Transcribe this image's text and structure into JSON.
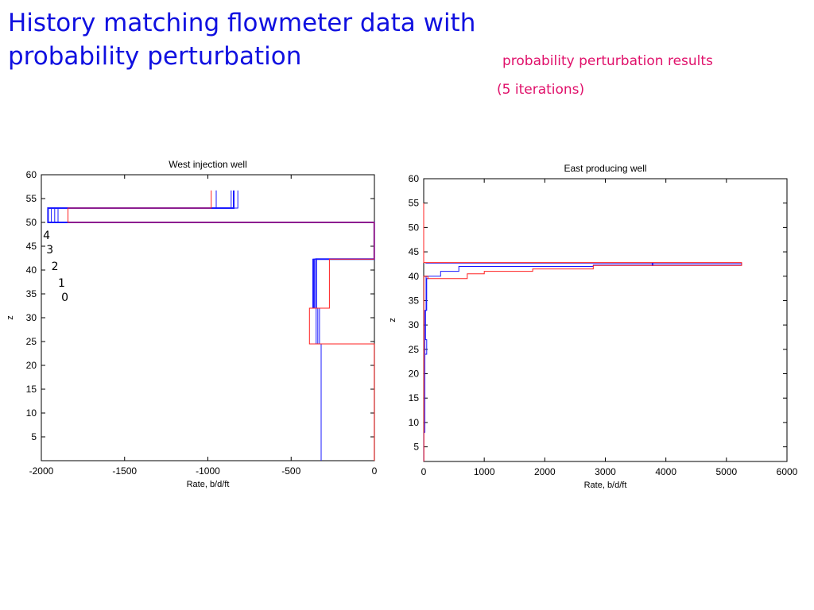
{
  "slide": {
    "title_line1": "History matching flowmeter data with",
    "title_line2": "probability perturbation",
    "subtitle_line1": "probability perturbation results",
    "subtitle_line2": "(5 iterations)"
  },
  "colors": {
    "blue": "#1a1aff",
    "red": "#ff2020",
    "title": "#1010e0",
    "subtitle": "#e0106a"
  },
  "chart_data": [
    {
      "type": "line",
      "title": "West injection well",
      "xlabel": "Rate, b/d/ft",
      "ylabel": "z",
      "xlim": [
        -2000,
        0
      ],
      "ylim": [
        0,
        60
      ],
      "xticks": [
        -2000,
        -1500,
        -1000,
        -500,
        0
      ],
      "yticks": [
        5,
        10,
        15,
        20,
        25,
        30,
        35,
        40,
        45,
        50,
        55,
        60
      ],
      "grid": false,
      "annotations": [
        {
          "text": "4",
          "x": -1990,
          "y": 46.5
        },
        {
          "text": "3",
          "x": -1970,
          "y": 43.5
        },
        {
          "text": "2",
          "x": -1940,
          "y": 40
        },
        {
          "text": "1",
          "x": -1900,
          "y": 36.5
        },
        {
          "text": "0",
          "x": -1880,
          "y": 33.5
        }
      ],
      "series": [
        {
          "color": "blue",
          "width": 1,
          "points": [
            [
              -320,
              0
            ],
            [
              -320,
              24.5
            ],
            [
              -330,
              24.5
            ],
            [
              -330,
              32
            ],
            [
              -360,
              32
            ],
            [
              -360,
              42.3
            ],
            [
              -1,
              42.3
            ],
            [
              -1,
              50
            ],
            [
              -1940,
              50
            ],
            [
              -1940,
              53
            ],
            [
              -820,
              53
            ],
            [
              -820,
              56.7
            ]
          ]
        },
        {
          "color": "blue",
          "width": 1,
          "points": [
            [
              -350,
              24.5
            ],
            [
              -350,
              32
            ],
            [
              -370,
              32
            ],
            [
              -370,
              42.3
            ],
            [
              -1,
              42.3
            ],
            [
              -1,
              50
            ],
            [
              -1900,
              50
            ],
            [
              -1900,
              53
            ],
            [
              -950,
              53
            ],
            [
              -950,
              56.7
            ]
          ]
        },
        {
          "color": "blue",
          "width": 1,
          "points": [
            [
              -340,
              24.5
            ],
            [
              -340,
              32
            ],
            [
              -365,
              32
            ],
            [
              -365,
              42.3
            ],
            [
              -1,
              42.3
            ],
            [
              -1,
              50
            ],
            [
              -1920,
              50
            ],
            [
              -1920,
              53
            ],
            [
              -860,
              53
            ],
            [
              -860,
              56.7
            ]
          ]
        },
        {
          "color": "blue",
          "width": 2,
          "points": [
            [
              -350,
              32
            ],
            [
              -350,
              42.3
            ],
            [
              -1,
              42.3
            ],
            [
              -1,
              50
            ],
            [
              -1960,
              50
            ],
            [
              -1960,
              53
            ],
            [
              -845,
              53
            ],
            [
              -845,
              56.7
            ]
          ]
        },
        {
          "color": "red",
          "width": 1,
          "points": [
            [
              -1,
              0
            ],
            [
              -1,
              24.5
            ],
            [
              -390,
              24.5
            ],
            [
              -390,
              32
            ],
            [
              -270,
              32
            ],
            [
              -270,
              42.3
            ],
            [
              -1,
              42.3
            ],
            [
              -1,
              50
            ],
            [
              -1840,
              50
            ],
            [
              -1840,
              53
            ],
            [
              -980,
              53
            ],
            [
              -980,
              56.7
            ]
          ]
        }
      ]
    },
    {
      "type": "line",
      "title": "East producing well",
      "xlabel": "Rate, b/d/ft",
      "ylabel": "z",
      "xlim": [
        0,
        6000
      ],
      "ylim": [
        2,
        60
      ],
      "xticks": [
        0,
        1000,
        2000,
        3000,
        4000,
        5000,
        6000
      ],
      "yticks": [
        5,
        10,
        15,
        20,
        25,
        30,
        35,
        40,
        45,
        50,
        55,
        60
      ],
      "grid": false,
      "series": [
        {
          "color": "blue",
          "width": 1,
          "points": [
            [
              3,
              2
            ],
            [
              3,
              8
            ],
            [
              20,
              8
            ],
            [
              20,
              24
            ],
            [
              50,
              24
            ],
            [
              50,
              27
            ],
            [
              30,
              27
            ],
            [
              30,
              33
            ],
            [
              40,
              33
            ],
            [
              40,
              40
            ],
            [
              280,
              40
            ],
            [
              280,
              41
            ],
            [
              580,
              41
            ],
            [
              580,
              42
            ],
            [
              2800,
              42
            ],
            [
              2800,
              42.3
            ],
            [
              5250,
              42.3
            ],
            [
              5250,
              42.7
            ],
            [
              30,
              42.7
            ]
          ]
        },
        {
          "color": "blue",
          "width": 1,
          "points": [
            [
              20,
              24
            ],
            [
              20,
              33
            ],
            [
              50,
              33
            ],
            [
              50,
              39.5
            ],
            [
              80,
              39.5
            ]
          ]
        },
        {
          "color": "blue",
          "width": 2,
          "points": [
            [
              3780,
              42.1
            ],
            [
              3780,
              42.8
            ]
          ]
        },
        {
          "color": "red",
          "width": 1,
          "points": [
            [
              3,
              2
            ],
            [
              3,
              40
            ],
            [
              70,
              40
            ],
            [
              70,
              39.5
            ],
            [
              720,
              39.5
            ],
            [
              720,
              40.5
            ],
            [
              1000,
              40.5
            ],
            [
              1000,
              41
            ],
            [
              1800,
              41
            ],
            [
              1800,
              41.5
            ],
            [
              2800,
              41.5
            ],
            [
              2800,
              42.2
            ],
            [
              5250,
              42.2
            ],
            [
              5250,
              42.8
            ],
            [
              0,
              42.8
            ],
            [
              0,
              55
            ]
          ]
        }
      ]
    }
  ]
}
